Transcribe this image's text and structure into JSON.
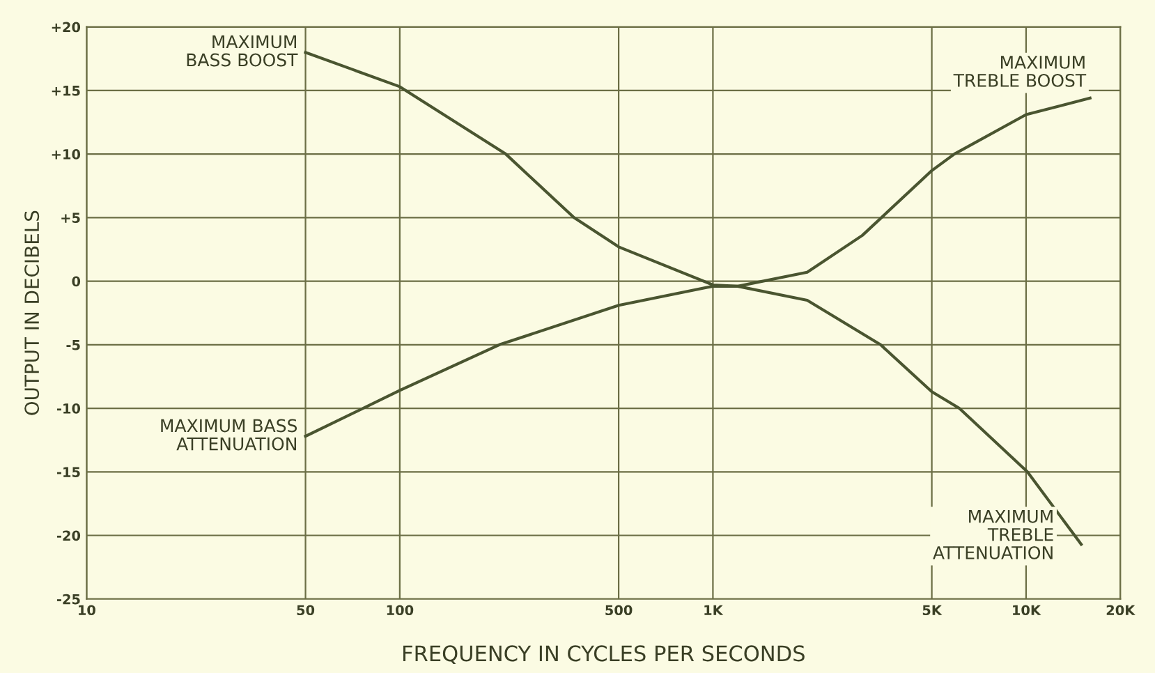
{
  "chart_data": {
    "type": "line",
    "xlabel": "FREQUENCY IN CYCLES PER SECONDS",
    "ylabel": "OUTPUT IN DECIBELS",
    "log": "x",
    "grid": true,
    "xlim": [
      10,
      20000
    ],
    "xticks": [
      10,
      50,
      100,
      500,
      {
        "value": 1000,
        "label": "1K"
      },
      {
        "value": 5000,
        "label": "5K"
      },
      {
        "value": 10000,
        "label": "10K"
      },
      {
        "value": 20000,
        "label": "20K"
      }
    ],
    "ylim": [
      -25,
      20
    ],
    "yticks": [
      {
        "value": 20,
        "label": "+20"
      },
      {
        "value": 15,
        "label": "+15"
      },
      {
        "value": 10,
        "label": "+10"
      },
      {
        "value": 5,
        "label": "+5"
      },
      0,
      -5,
      -10,
      -15,
      -20,
      -25
    ],
    "series": [
      {
        "color": "#4a5530",
        "x": [
          50,
          100,
          218,
          360,
          500,
          1000,
          1200,
          2000,
          3430,
          5000,
          6120,
          10100,
          15000
        ],
        "values": [
          18,
          15.3,
          10,
          5,
          2.7,
          -0.3,
          -0.4,
          -1.5,
          -5,
          -8.7,
          -10,
          -15,
          -20.7
        ]
      },
      {
        "color": "#4a5530",
        "x": [
          50,
          100,
          208,
          500,
          1000,
          1200,
          2000,
          3000,
          5000,
          5900,
          10000,
          16000
        ],
        "values": [
          -12.2,
          -8.6,
          -5,
          -1.9,
          -0.4,
          -0.4,
          0.7,
          3.6,
          8.7,
          10,
          13.1,
          14.4
        ]
      }
    ],
    "annotations": [
      {
        "text": "MAXIMUM\nBASS BOOST",
        "x": 50,
        "y": 18
      },
      {
        "text": "MAXIMUM BASS\nATTENUATION",
        "x": 50,
        "y": -12.2
      },
      {
        "text": "MAXIMUM\nTREBLE BOOST",
        "x": 16000,
        "y": 14.4
      },
      {
        "text": "MAXIMUM\nTREBLE\nATTENUATION",
        "x": 15000,
        "y": -20.7
      }
    ]
  }
}
